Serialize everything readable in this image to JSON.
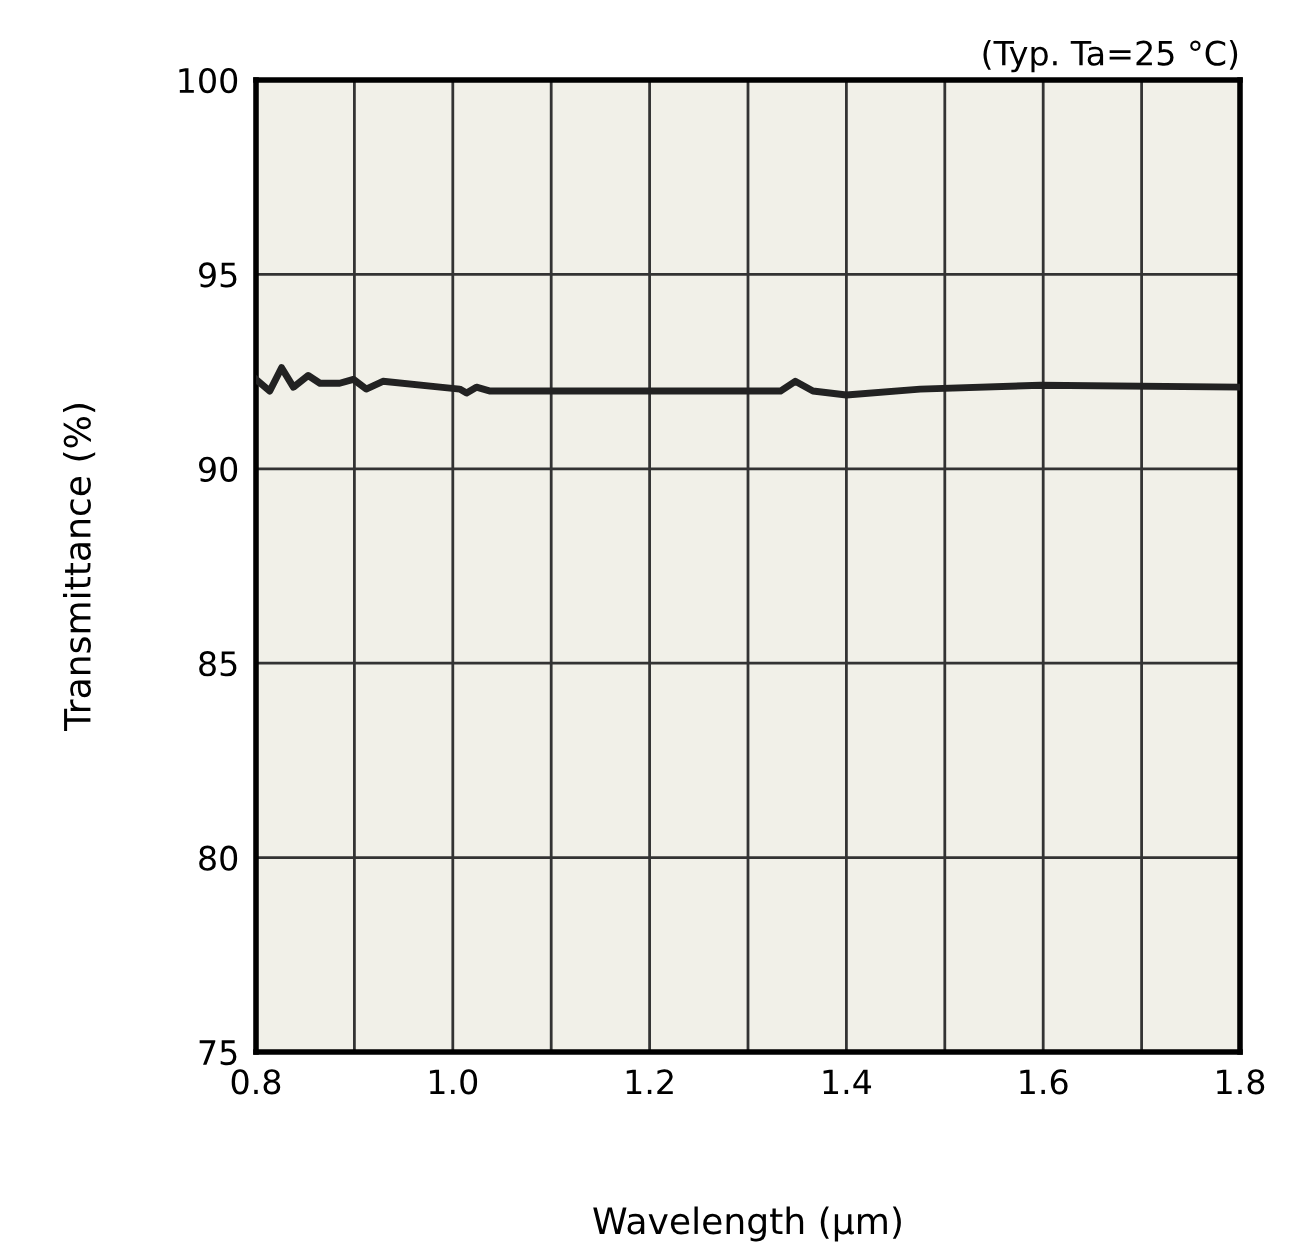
{
  "chart_data": {
    "type": "line",
    "xlabel": "Wavelength (μm)",
    "ylabel": "Transmittance (%)",
    "annotations": [
      "(Typ. Ta=25 °C)"
    ],
    "xlim": [
      0.8,
      1.8
    ],
    "ylim": [
      75,
      100
    ],
    "xticks": [
      {
        "value": 0.8,
        "label": "0.8"
      },
      {
        "value": 0.9,
        "label": null
      },
      {
        "value": 1.0,
        "label": "1.0"
      },
      {
        "value": 1.1,
        "label": null
      },
      {
        "value": 1.2,
        "label": "1.2"
      },
      {
        "value": 1.3,
        "label": null
      },
      {
        "value": 1.4,
        "label": "1.4"
      },
      {
        "value": 1.5,
        "label": null
      },
      {
        "value": 1.6,
        "label": "1.6"
      },
      {
        "value": 1.7,
        "label": null
      },
      {
        "value": 1.8,
        "label": "1.8"
      }
    ],
    "yticks": [
      75,
      80,
      85,
      90,
      95,
      100
    ],
    "grid": true,
    "legend": false,
    "marker": "none",
    "line_style": "solid",
    "series": [
      {
        "color": "#222222",
        "x": [
          0.8,
          0.814,
          0.826,
          0.838,
          0.853,
          0.865,
          0.885,
          0.899,
          0.912,
          0.929,
          0.987,
          1.007,
          1.014,
          1.024,
          1.038,
          1.2,
          1.333,
          1.348,
          1.366,
          1.4,
          1.475,
          1.597,
          1.8
        ],
        "values": [
          92.3,
          92.0,
          92.6,
          92.1,
          92.4,
          92.2,
          92.2,
          92.3,
          92.05,
          92.25,
          92.1,
          92.05,
          91.95,
          92.1,
          92.0,
          92.0,
          92.0,
          92.25,
          92.0,
          91.9,
          92.05,
          92.15,
          92.1
        ]
      }
    ]
  }
}
